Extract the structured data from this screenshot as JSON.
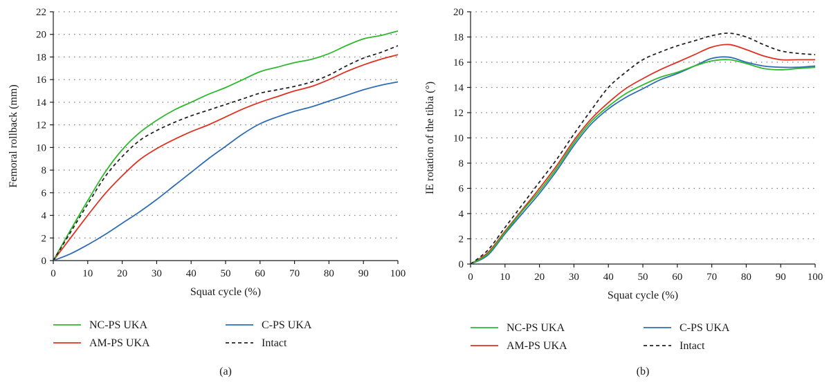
{
  "chart_data": [
    {
      "type": "line",
      "panel_label": "(a)",
      "xlabel": "Squat cycle (%)",
      "ylabel": "Femoral rollback (mm)",
      "xlim": [
        0,
        100
      ],
      "ylim": [
        0,
        22
      ],
      "xticks": [
        0,
        10,
        20,
        30,
        40,
        50,
        60,
        70,
        80,
        90,
        100
      ],
      "yticks": [
        0,
        2,
        4,
        6,
        8,
        10,
        12,
        14,
        16,
        18,
        20,
        22
      ],
      "grid": "horizontal-dotted",
      "legend_position": "bottom",
      "x": [
        0,
        5,
        10,
        15,
        20,
        25,
        30,
        35,
        40,
        45,
        50,
        55,
        60,
        65,
        70,
        75,
        80,
        85,
        90,
        95,
        100
      ],
      "series": [
        {
          "name": "NC-PS UKA",
          "color": "#2db82d",
          "dash": "solid",
          "values": [
            0,
            2.7,
            5.3,
            7.8,
            9.8,
            11.3,
            12.4,
            13.3,
            14.0,
            14.7,
            15.3,
            16.0,
            16.7,
            17.1,
            17.5,
            17.8,
            18.3,
            19.0,
            19.6,
            19.9,
            20.3
          ]
        },
        {
          "name": "AM-PS UKA",
          "color": "#e03020",
          "dash": "solid",
          "values": [
            0,
            2.0,
            4.0,
            5.9,
            7.5,
            8.9,
            9.9,
            10.7,
            11.4,
            12.0,
            12.7,
            13.4,
            14.0,
            14.5,
            15.0,
            15.4,
            16.0,
            16.7,
            17.3,
            17.8,
            18.2
          ]
        },
        {
          "name": "C-PS UKA",
          "color": "#2e6db4",
          "dash": "solid",
          "values": [
            0,
            0.6,
            1.4,
            2.3,
            3.3,
            4.3,
            5.4,
            6.6,
            7.8,
            9.0,
            10.1,
            11.2,
            12.1,
            12.7,
            13.2,
            13.6,
            14.1,
            14.6,
            15.1,
            15.5,
            15.8
          ]
        },
        {
          "name": "Intact",
          "color": "#222222",
          "dash": "dashed",
          "values": [
            0,
            2.5,
            5.0,
            7.4,
            9.2,
            10.6,
            11.5,
            12.2,
            12.8,
            13.3,
            13.8,
            14.3,
            14.8,
            15.1,
            15.4,
            15.8,
            16.4,
            17.2,
            17.9,
            18.4,
            19.0
          ]
        }
      ]
    },
    {
      "type": "line",
      "panel_label": "(b)",
      "xlabel": "Squat cycle (%)",
      "ylabel": "IE rotation of the tibia (°)",
      "xlim": [
        0,
        100
      ],
      "ylim": [
        0,
        20
      ],
      "xticks": [
        0,
        10,
        20,
        30,
        40,
        50,
        60,
        70,
        80,
        90,
        100
      ],
      "yticks": [
        0,
        2,
        4,
        6,
        8,
        10,
        12,
        14,
        16,
        18,
        20
      ],
      "grid": "horizontal-dotted",
      "legend_position": "bottom",
      "x": [
        0,
        5,
        10,
        15,
        20,
        25,
        30,
        35,
        40,
        45,
        50,
        55,
        60,
        65,
        70,
        75,
        80,
        85,
        90,
        95,
        100
      ],
      "series": [
        {
          "name": "NC-PS UKA",
          "color": "#2db82d",
          "dash": "solid",
          "values": [
            0,
            0.8,
            2.5,
            4.2,
            5.8,
            7.6,
            9.6,
            11.3,
            12.5,
            13.5,
            14.2,
            14.8,
            15.2,
            15.7,
            16.1,
            16.2,
            15.9,
            15.5,
            15.4,
            15.5,
            15.6
          ]
        },
        {
          "name": "AM-PS UKA",
          "color": "#e03020",
          "dash": "solid",
          "values": [
            0,
            0.9,
            2.6,
            4.3,
            6.0,
            7.8,
            9.8,
            11.5,
            12.8,
            13.9,
            14.7,
            15.4,
            16.0,
            16.6,
            17.2,
            17.4,
            17.0,
            16.5,
            16.2,
            16.2,
            16.2
          ]
        },
        {
          "name": "C-PS UKA",
          "color": "#2e6db4",
          "dash": "solid",
          "values": [
            0,
            0.7,
            2.4,
            4.0,
            5.6,
            7.4,
            9.4,
            11.1,
            12.3,
            13.2,
            13.9,
            14.6,
            15.1,
            15.7,
            16.3,
            16.4,
            16.0,
            15.7,
            15.6,
            15.6,
            15.7
          ]
        },
        {
          "name": "Intact",
          "color": "#222222",
          "dash": "dashed",
          "values": [
            0,
            1.1,
            2.9,
            4.7,
            6.5,
            8.3,
            10.3,
            12.2,
            14.0,
            15.2,
            16.2,
            16.8,
            17.3,
            17.7,
            18.1,
            18.3,
            18.0,
            17.4,
            16.9,
            16.7,
            16.6
          ]
        }
      ]
    }
  ]
}
